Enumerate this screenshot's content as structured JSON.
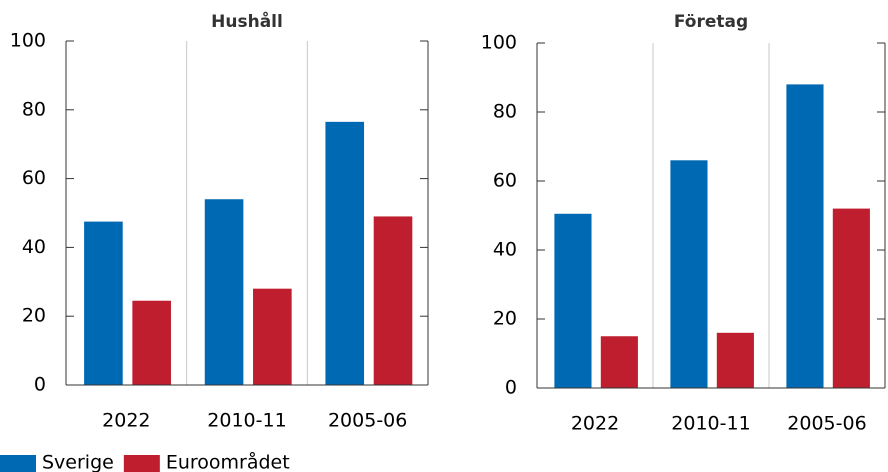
{
  "chart_data": [
    {
      "type": "bar",
      "title": "Hushåll",
      "categories": [
        "2022",
        "2010-11",
        "2005-06"
      ],
      "series": [
        {
          "name": "Sverige",
          "color": "#0069b4",
          "values": [
            47.5,
            54,
            76.5
          ]
        },
        {
          "name": "Euroområdet",
          "color": "#be1e2d",
          "values": [
            24.5,
            28,
            49
          ]
        }
      ],
      "ylim": [
        0,
        100
      ],
      "yticks": [
        0,
        20,
        40,
        60,
        80,
        100
      ],
      "grid": true
    },
    {
      "type": "bar",
      "title": "Företag",
      "categories": [
        "2022",
        "2010-11",
        "2005-06"
      ],
      "series": [
        {
          "name": "Sverige",
          "color": "#0069b4",
          "values": [
            50.5,
            66,
            88
          ]
        },
        {
          "name": "Euroområdet",
          "color": "#be1e2d",
          "values": [
            15,
            16,
            52
          ]
        }
      ],
      "ylim": [
        0,
        100
      ],
      "yticks": [
        0,
        20,
        40,
        60,
        80,
        100
      ],
      "grid": true
    }
  ]
}
